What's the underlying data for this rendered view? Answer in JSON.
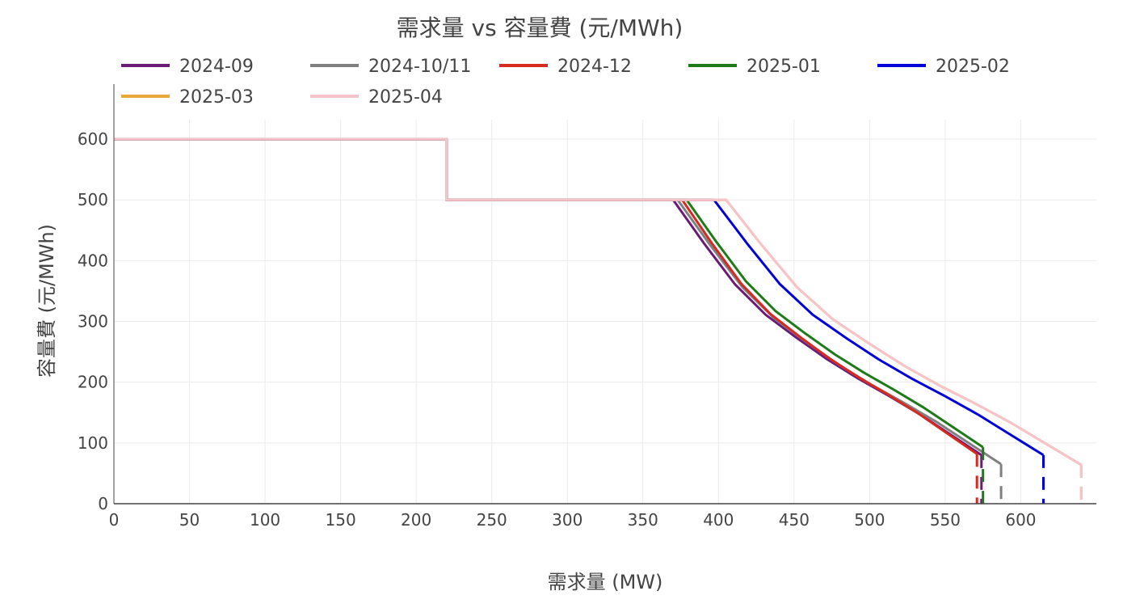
{
  "chart_data": {
    "type": "line",
    "title": "需求量 vs 容量費 (元/MWh)",
    "xlabel": "需求量 (MW)",
    "ylabel": "容量費 (元/MWh)",
    "xlim": [
      0,
      650
    ],
    "ylim": [
      0,
      632
    ],
    "xticks": [
      0,
      50,
      100,
      150,
      200,
      250,
      300,
      350,
      400,
      450,
      500,
      550,
      600
    ],
    "yticks": [
      0,
      100,
      200,
      300,
      400,
      500,
      600
    ],
    "grid": true,
    "legend_position": "top",
    "series": [
      {
        "name": "2024-09",
        "color": "#6b1a78",
        "points": [
          [
            0,
            600
          ],
          [
            220,
            600
          ],
          [
            220,
            500
          ],
          [
            370,
            500
          ],
          [
            390.4,
            428.6
          ],
          [
            410.8,
            361.4
          ],
          [
            431.2,
            311
          ],
          [
            451.6,
            273.2
          ],
          [
            472,
            237.5
          ],
          [
            492.4,
            206
          ],
          [
            512.8,
            177.4
          ],
          [
            533.2,
            147.2
          ],
          [
            553.6,
            113.6
          ],
          [
            574,
            80
          ]
        ],
        "dashed": [
          [
            574,
            80
          ],
          [
            574,
            0
          ]
        ]
      },
      {
        "name": "2024-10/11",
        "color": "#808080",
        "points": [
          [
            0,
            600
          ],
          [
            220,
            600
          ],
          [
            220,
            500
          ],
          [
            373,
            500
          ],
          [
            394.4,
            426
          ],
          [
            415.8,
            356.5
          ],
          [
            437.2,
            304.3
          ],
          [
            458.6,
            265.1
          ],
          [
            480,
            228.1
          ],
          [
            501.4,
            195.5
          ],
          [
            522.8,
            165.9
          ],
          [
            544.2,
            134.6
          ],
          [
            565.6,
            99.8
          ],
          [
            587,
            65
          ]
        ],
        "dashed": [
          [
            587,
            65
          ],
          [
            587,
            0
          ]
        ]
      },
      {
        "name": "2024-12",
        "color": "#d62a1e",
        "points": [
          [
            0,
            600
          ],
          [
            220,
            600
          ],
          [
            220,
            500
          ],
          [
            376,
            500
          ],
          [
            395.5,
            428.9
          ],
          [
            415,
            362.1
          ],
          [
            434.5,
            311.9
          ],
          [
            454,
            274.3
          ],
          [
            473.5,
            238.8
          ],
          [
            493,
            207.4
          ],
          [
            512.5,
            179
          ],
          [
            532,
            148.9
          ],
          [
            551.5,
            115.4
          ],
          [
            571,
            82
          ]
        ],
        "dashed": [
          [
            571,
            82
          ],
          [
            571,
            0
          ]
        ]
      },
      {
        "name": "2025-01",
        "color": "#1f7a1a",
        "points": [
          [
            0,
            600
          ],
          [
            220,
            600
          ],
          [
            220,
            500
          ],
          [
            379,
            500
          ],
          [
            398.6,
            430.8
          ],
          [
            418.2,
            365.7
          ],
          [
            437.8,
            316.9
          ],
          [
            457.4,
            280.2
          ],
          [
            477,
            245.6
          ],
          [
            496.6,
            215.1
          ],
          [
            516.2,
            187.4
          ],
          [
            535.8,
            158.1
          ],
          [
            555.4,
            125.6
          ],
          [
            575,
            93
          ]
        ],
        "dashed": [
          [
            575,
            93
          ],
          [
            575,
            0
          ]
        ]
      },
      {
        "name": "2025-02",
        "color": "#0000dd",
        "points": [
          [
            0,
            600
          ],
          [
            220,
            600
          ],
          [
            220,
            500
          ],
          [
            397,
            500
          ],
          [
            418.8,
            428.6
          ],
          [
            440.6,
            361.4
          ],
          [
            462.4,
            311
          ],
          [
            484.2,
            273.2
          ],
          [
            506,
            237.5
          ],
          [
            527.8,
            206
          ],
          [
            549.6,
            177.4
          ],
          [
            571.4,
            147.2
          ],
          [
            593.2,
            113.6
          ],
          [
            615,
            80
          ]
        ],
        "dashed": [
          [
            615,
            80
          ],
          [
            615,
            0
          ]
        ]
      },
      {
        "name": "2025-03",
        "color": "#e8a83a",
        "points": [
          [
            0,
            600
          ],
          [
            220,
            600
          ],
          [
            220,
            500
          ],
          [
            405,
            500
          ],
          [
            428.5,
            425.9
          ],
          [
            452,
            356.1
          ],
          [
            475.5,
            303.8
          ],
          [
            499,
            264.6
          ],
          [
            522.5,
            227.5
          ],
          [
            546,
            194.8
          ],
          [
            569.5,
            165.2
          ],
          [
            593,
            133.8
          ],
          [
            616.5,
            98.9
          ],
          [
            640,
            64
          ]
        ],
        "dashed": [
          [
            640,
            64
          ],
          [
            640,
            0
          ]
        ]
      },
      {
        "name": "2025-04",
        "color": "#f7c3cb",
        "points": [
          [
            0,
            600
          ],
          [
            220,
            600
          ],
          [
            220,
            500
          ],
          [
            405,
            500
          ],
          [
            428.5,
            425.9
          ],
          [
            452,
            356.1
          ],
          [
            475.5,
            303.8
          ],
          [
            499,
            264.6
          ],
          [
            522.5,
            227.5
          ],
          [
            546,
            194.8
          ],
          [
            569.5,
            165.2
          ],
          [
            593,
            133.8
          ],
          [
            616.5,
            98.9
          ],
          [
            640,
            64
          ]
        ],
        "dashed": [
          [
            640,
            64
          ],
          [
            640,
            0
          ]
        ]
      }
    ]
  }
}
